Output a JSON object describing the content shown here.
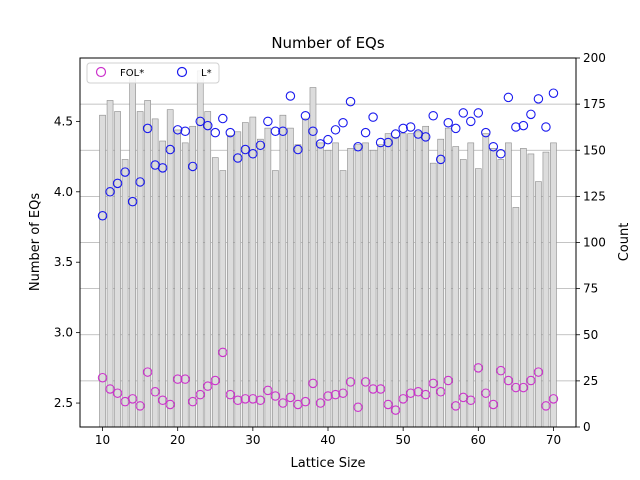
{
  "chart_data": {
    "type": "bar",
    "title": "Number of EQs",
    "xlabel": "Lattice Size",
    "ylabel": "Number of EQs",
    "y2label": "Count",
    "xlim": [
      7,
      73
    ],
    "ylim": [
      2.33,
      4.95
    ],
    "y2lim": [
      0,
      200
    ],
    "xticks": [
      10,
      20,
      30,
      40,
      50,
      60,
      70
    ],
    "yticks": [
      2.5,
      3.0,
      3.5,
      4.0,
      4.5
    ],
    "y2ticks": [
      0,
      25,
      50,
      75,
      100,
      125,
      150,
      175,
      200
    ],
    "grid": "horizontal lines on right axis",
    "legend": {
      "location": "top-left",
      "entries": [
        "FOL*",
        "L*"
      ]
    },
    "colors": {
      "bars": "#dcdcdc",
      "bar_edge": "#8a8a8a",
      "fol": "#cc33cc",
      "lstar": "#1a1aee",
      "grid": "#b0b0b0"
    },
    "x": [
      10,
      11,
      12,
      13,
      14,
      15,
      16,
      17,
      18,
      19,
      20,
      21,
      22,
      23,
      24,
      25,
      26,
      27,
      28,
      29,
      30,
      31,
      32,
      33,
      34,
      35,
      36,
      37,
      38,
      39,
      40,
      41,
      42,
      43,
      44,
      45,
      46,
      47,
      48,
      49,
      50,
      51,
      52,
      53,
      54,
      55,
      56,
      57,
      58,
      59,
      60,
      61,
      62,
      63,
      64,
      65,
      66,
      67,
      68,
      69,
      70
    ],
    "series": [
      {
        "name": "Count",
        "kind": "bar",
        "axis": "right",
        "values": [
          169,
          177,
          171,
          145,
          194,
          171,
          177,
          167,
          155,
          172,
          161,
          154,
          163,
          193,
          171,
          146,
          139,
          158,
          160,
          165,
          168,
          156,
          162,
          139,
          169,
          162,
          153,
          167,
          184,
          154,
          150,
          154,
          139,
          151,
          153,
          154,
          150,
          153,
          159,
          157,
          159,
          159,
          160,
          163,
          143,
          156,
          162,
          152,
          145,
          154,
          140,
          159,
          151,
          145,
          154,
          119,
          151,
          148,
          133,
          149,
          154
        ]
      },
      {
        "name": "FOL*",
        "kind": "scatter",
        "axis": "left",
        "values": [
          2.68,
          2.6,
          2.57,
          2.51,
          2.53,
          2.48,
          2.72,
          2.58,
          2.52,
          2.49,
          2.67,
          2.67,
          2.51,
          2.56,
          2.62,
          2.66,
          2.86,
          2.56,
          2.52,
          2.53,
          2.53,
          2.52,
          2.59,
          2.55,
          2.5,
          2.54,
          2.49,
          2.51,
          2.64,
          2.5,
          2.55,
          2.56,
          2.57,
          2.65,
          2.47,
          2.65,
          2.6,
          2.6,
          2.49,
          2.45,
          2.53,
          2.57,
          2.58,
          2.56,
          2.64,
          2.58,
          2.66,
          2.48,
          2.54,
          2.52,
          2.75,
          2.57,
          2.49,
          2.73,
          2.66,
          2.61,
          2.61,
          2.66,
          2.72,
          2.48,
          2.53
        ]
      },
      {
        "name": "L*",
        "kind": "scatter",
        "axis": "left",
        "values": [
          3.83,
          4.0,
          4.06,
          4.14,
          3.93,
          4.07,
          4.45,
          4.19,
          4.17,
          4.3,
          4.44,
          4.43,
          4.18,
          4.5,
          4.47,
          4.42,
          4.52,
          4.42,
          4.24,
          4.3,
          4.27,
          4.33,
          4.5,
          4.43,
          4.43,
          4.68,
          4.3,
          4.54,
          4.43,
          4.34,
          4.37,
          4.44,
          4.49,
          4.64,
          4.32,
          4.42,
          4.53,
          4.35,
          4.35,
          4.41,
          4.45,
          4.46,
          4.41,
          4.39,
          4.54,
          4.23,
          4.49,
          4.45,
          4.56,
          4.5,
          4.56,
          4.42,
          4.32,
          4.27,
          4.67,
          4.46,
          4.47,
          4.55,
          4.66,
          4.46,
          4.7
        ]
      }
    ]
  }
}
